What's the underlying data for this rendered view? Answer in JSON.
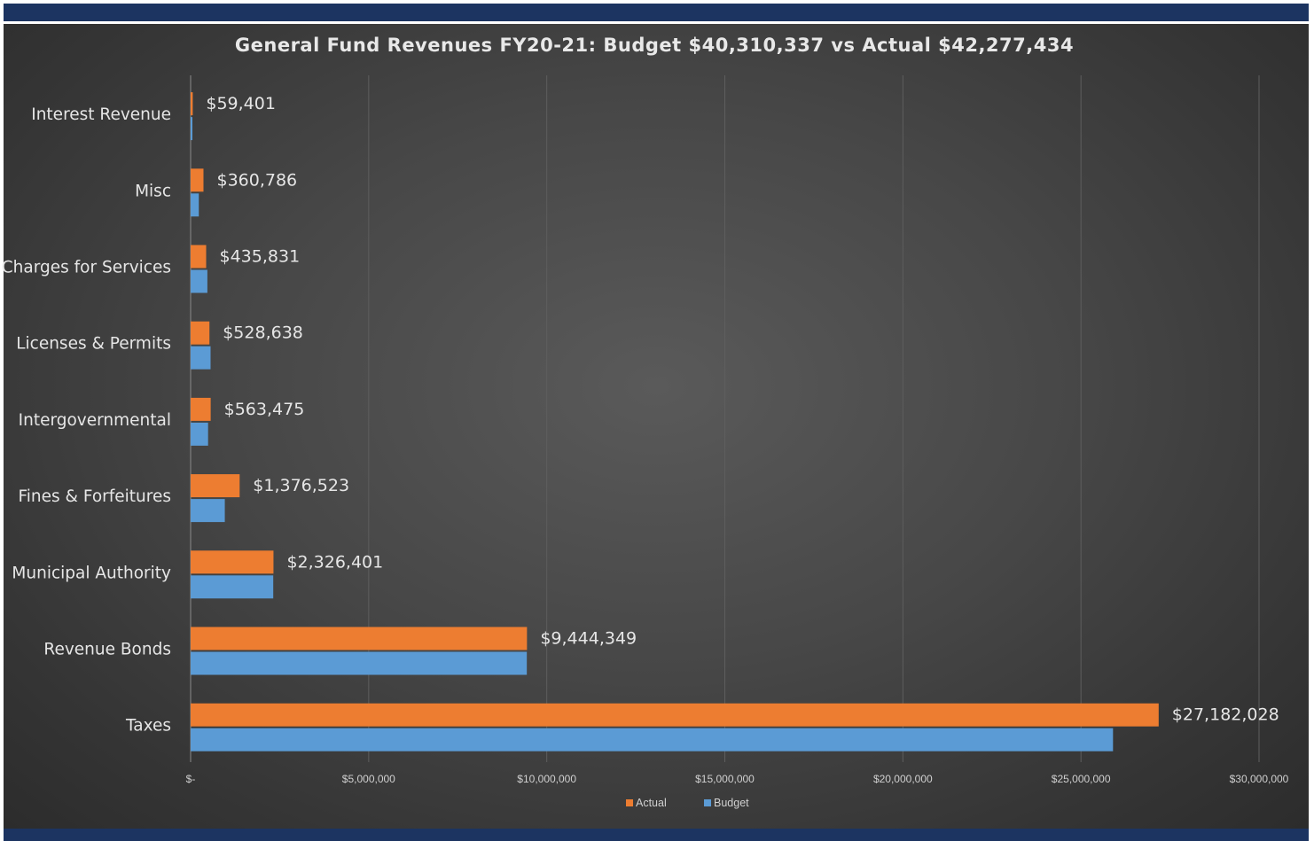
{
  "chart_data": {
    "type": "bar",
    "orientation": "horizontal",
    "title": "General Fund Revenues FY20-21: Budget $40,310,337 vs Actual $42,277,434",
    "categories": [
      "Interest Revenue",
      "Misc",
      "Charges for Services",
      "Licenses & Permits",
      "Intergovernmental",
      "Fines & Forfeitures",
      "Municipal Authority",
      "Revenue Bonds",
      "Taxes"
    ],
    "series": [
      {
        "name": "Actual",
        "color": "#ed7d31",
        "values": [
          59401,
          360786,
          435831,
          528638,
          563475,
          1376523,
          2326401,
          9444349,
          27182028
        ],
        "labels": [
          "$59,401",
          "$360,786",
          "$435,831",
          "$528,638",
          "$563,475",
          "$1,376,523",
          "$2,326,401",
          "$9,444,349",
          "$27,182,028"
        ]
      },
      {
        "name": "Budget",
        "color": "#5b9bd5",
        "values": [
          15000,
          230000,
          470000,
          560000,
          490000,
          960000,
          2320000,
          9440000,
          25900000
        ]
      }
    ],
    "xlim": [
      0,
      30000000
    ],
    "xticks": [
      0,
      5000000,
      10000000,
      15000000,
      20000000,
      25000000,
      30000000
    ],
    "xtick_labels": [
      "$-",
      "$5,000,000",
      "$10,000,000",
      "$15,000,000",
      "$20,000,000",
      "$25,000,000",
      "$30,000,000"
    ],
    "grid": true,
    "legend": "bottom-center",
    "xlabel": "",
    "ylabel": ""
  }
}
